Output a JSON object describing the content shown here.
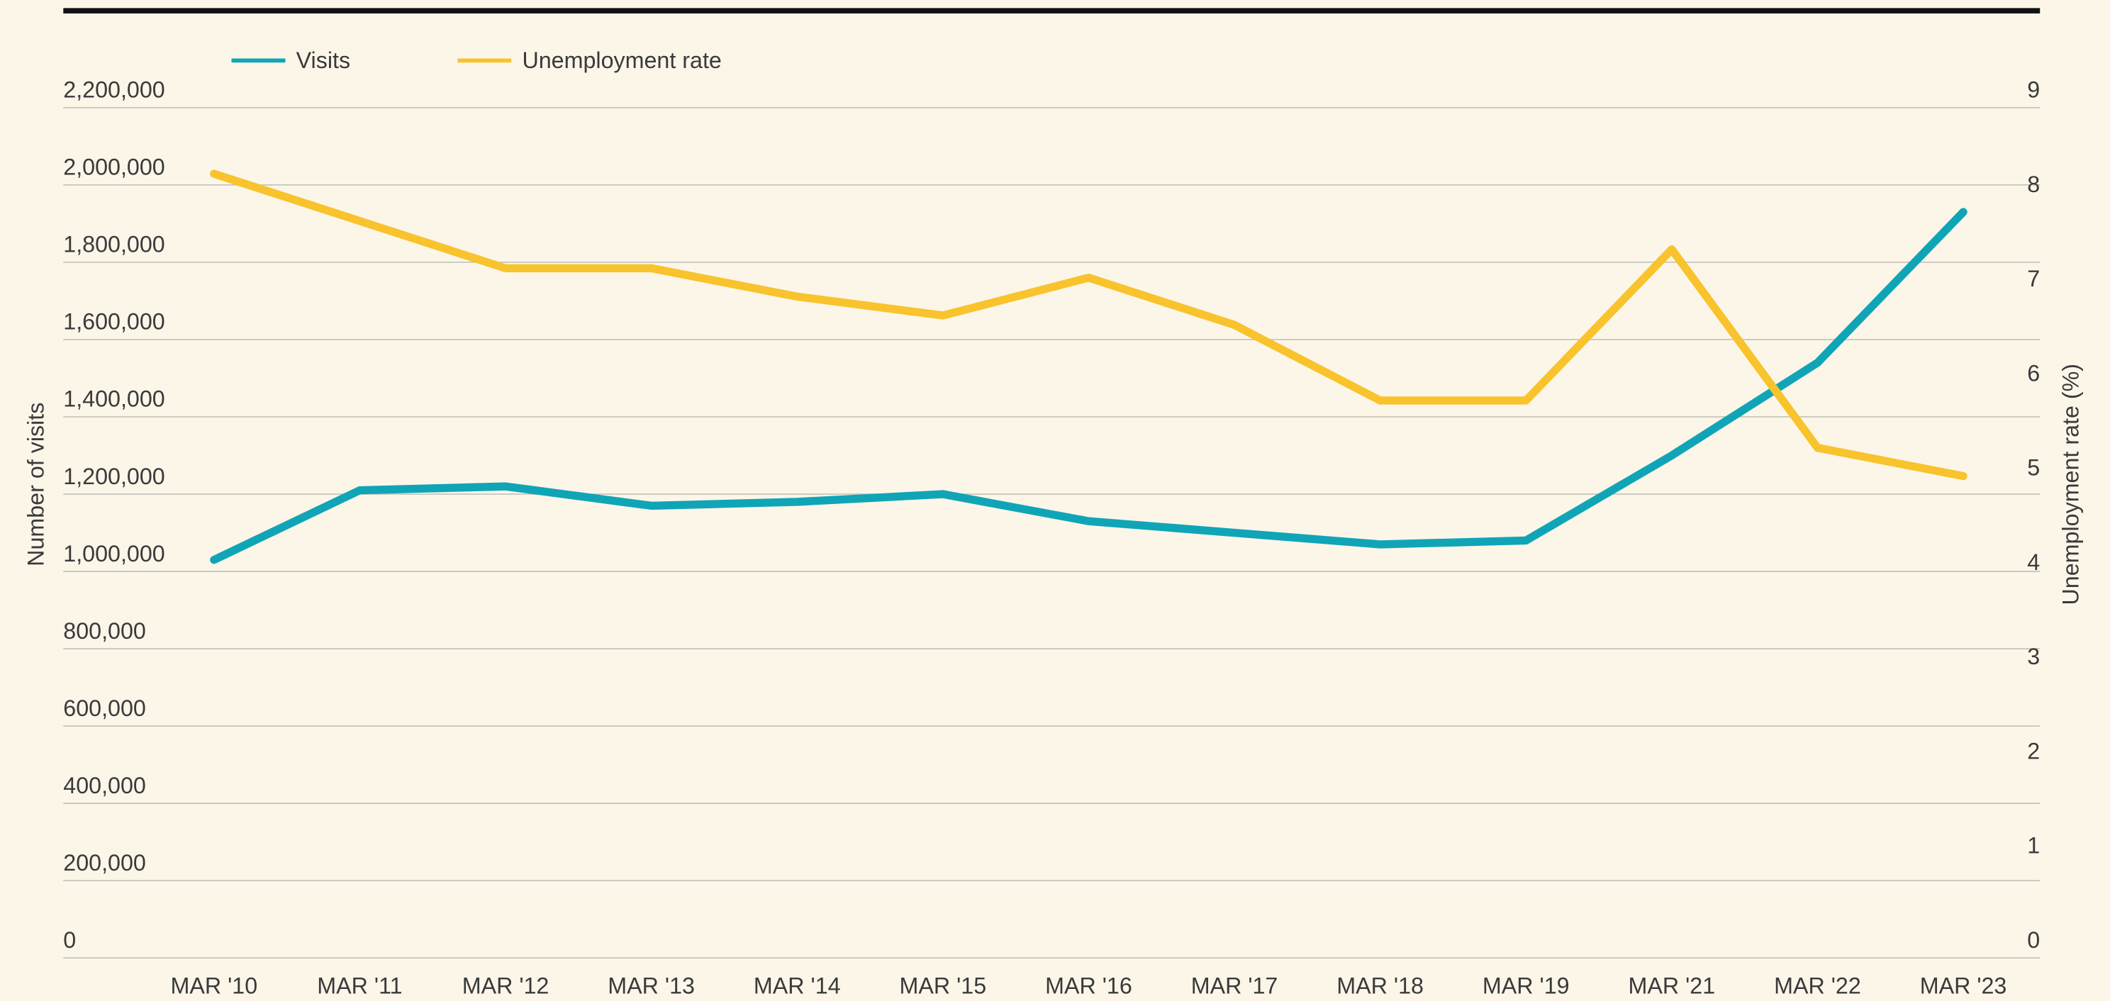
{
  "chart_data": {
    "type": "line",
    "categories": [
      "MAR '10",
      "MAR '11",
      "MAR '12",
      "MAR '13",
      "MAR '14",
      "MAR '15",
      "MAR '16",
      "MAR '17",
      "MAR '18",
      "MAR '19",
      "MAR '21",
      "MAR '22",
      "MAR '23"
    ],
    "series": [
      {
        "name": "Visits",
        "color": "#10a5b6",
        "values": [
          1030000,
          1210000,
          1220000,
          1170000,
          1180000,
          1200000,
          1130000,
          1100000,
          1070000,
          1080000,
          1300000,
          1540000,
          1930000
        ]
      },
      {
        "name": "Unemployment rate",
        "color": "#f8c32c",
        "axis": "y2",
        "values": [
          8.3,
          7.8,
          7.3,
          7.3,
          7.0,
          6.8,
          7.2,
          6.7,
          5.9,
          5.9,
          7.5,
          5.4,
          5.1
        ]
      }
    ],
    "ylabel": "Number of visits",
    "y2label": "Unemployment rate (%)",
    "ylim": [
      0,
      2200000
    ],
    "yticks": [
      0,
      {
        "value": 200000,
        "label": "200,000"
      },
      {
        "value": 400000,
        "label": "400,000"
      },
      {
        "value": 600000,
        "label": "600,000"
      },
      {
        "value": 800000,
        "label": "800,000"
      },
      {
        "value": 1000000,
        "label": "1,000,000"
      },
      {
        "value": 1200000,
        "label": "1,200,000"
      },
      {
        "value": 1400000,
        "label": "1,400,000"
      },
      {
        "value": 1600000,
        "label": "1,600,000"
      },
      {
        "value": 1800000,
        "label": "1,800,000"
      },
      {
        "value": 2000000,
        "label": "2,000,000"
      },
      {
        "value": 2200000,
        "label": "2,200,000"
      }
    ],
    "y2lim": [
      0,
      9
    ],
    "y2ticks": [
      0,
      1,
      2,
      3,
      4,
      5,
      6,
      7,
      8,
      9
    ],
    "grid": true,
    "legend": "top-left"
  }
}
